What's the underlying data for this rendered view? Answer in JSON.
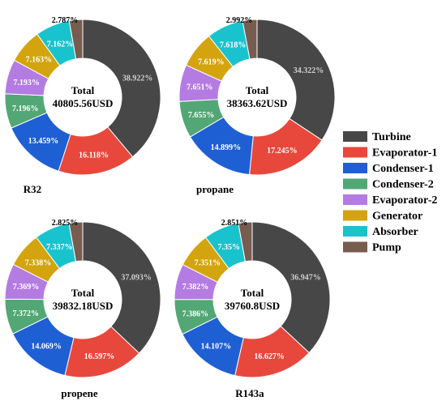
{
  "colors": [
    "#474747",
    "#e8483c",
    "#1f5fd4",
    "#52a775",
    "#b47be2",
    "#d3a40d",
    "#19c3cd",
    "#775c50"
  ],
  "legend": [
    "Turbine",
    "Evaporator-1",
    "Condenser-1",
    "Condenser-2",
    "Evaporator-2",
    "Generator",
    "Absorber",
    "Pump"
  ],
  "chart_data": [
    {
      "type": "pie",
      "title": "R32",
      "center_label": "Total",
      "center_value": "40805.56USD",
      "categories": [
        "Turbine",
        "Evaporator-1",
        "Condenser-1",
        "Condenser-2",
        "Evaporator-2",
        "Generator",
        "Absorber",
        "Pump"
      ],
      "values": [
        38.922,
        16.118,
        13.459,
        7.196,
        7.193,
        7.163,
        7.162,
        2.787
      ],
      "labels": [
        "38.922%",
        "16.118%",
        "13.459%",
        "7.196%",
        "7.193%",
        "7.163%",
        "7.162%",
        "2.787%"
      ]
    },
    {
      "type": "pie",
      "title": "propane",
      "center_label": "Total",
      "center_value": "38363.62USD",
      "categories": [
        "Turbine",
        "Evaporator-1",
        "Condenser-1",
        "Condenser-2",
        "Evaporator-2",
        "Generator",
        "Absorber",
        "Pump"
      ],
      "values": [
        34.322,
        17.245,
        14.899,
        7.655,
        7.651,
        7.619,
        7.618,
        2.992
      ],
      "labels": [
        "34.322%",
        "17.245%",
        "14.899%",
        "7.655%",
        "7.651%",
        "7.619%",
        "7.618%",
        "2.992%"
      ]
    },
    {
      "type": "pie",
      "title": "propene",
      "center_label": "Total",
      "center_value": "39832.18USD",
      "categories": [
        "Turbine",
        "Evaporator-1",
        "Condenser-1",
        "Condenser-2",
        "Evaporator-2",
        "Generator",
        "Absorber",
        "Pump"
      ],
      "values": [
        37.093,
        16.597,
        14.069,
        7.372,
        7.369,
        7.338,
        7.337,
        2.825
      ],
      "labels": [
        "37.093%",
        "16.597%",
        "14.069%",
        "7.372%",
        "7.369%",
        "7.338%",
        "7.337%",
        "2.825%"
      ]
    },
    {
      "type": "pie",
      "title": "R143a",
      "center_label": "Total",
      "center_value": "39760.8USD",
      "categories": [
        "Turbine",
        "Evaporator-1",
        "Condenser-1",
        "Condenser-2",
        "Evaporator-2",
        "Generator",
        "Absorber",
        "Pump"
      ],
      "values": [
        36.947,
        16.627,
        14.107,
        7.386,
        7.382,
        7.351,
        7.35,
        2.851
      ],
      "labels": [
        "36.947%",
        "16.627%",
        "14.107%",
        "7.386%",
        "7.382%",
        "7.351%",
        "7.35%",
        "2.851%"
      ]
    }
  ]
}
